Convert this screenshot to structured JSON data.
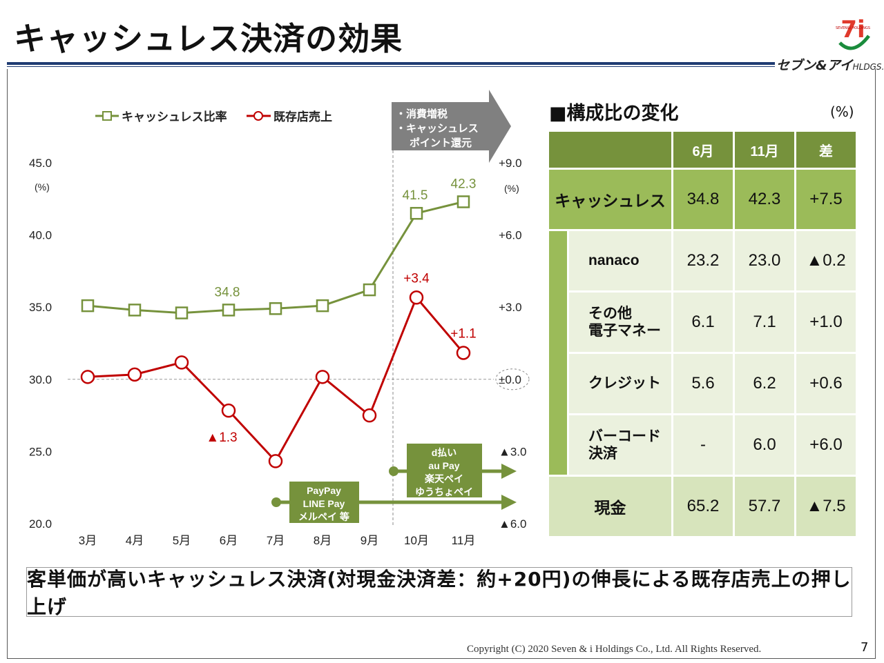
{
  "header": {
    "title": "キャッシュレス決済の効果",
    "brand": "セブン&アイ",
    "brand_suffix": "HLDGS.",
    "logo_text": "SEVEN&i HOLDINGS",
    "logo_glyph": "7i"
  },
  "chart_data": {
    "type": "line",
    "title": "",
    "categories": [
      "3月",
      "4月",
      "5月",
      "6月",
      "7月",
      "8月",
      "9月",
      "10月",
      "11月"
    ],
    "left_axis": {
      "unit": "(%)",
      "ylim": [
        20.0,
        45.0
      ],
      "ticks": [
        "45.0",
        "40.0",
        "35.0",
        "30.0",
        "25.0",
        "20.0"
      ]
    },
    "right_axis": {
      "unit": "(%)",
      "ylim": [
        -6.0,
        9.0
      ],
      "ticks": [
        "+9.0",
        "+6.0",
        "+3.0",
        "±0.0",
        "▲3.0",
        "▲6.0"
      ]
    },
    "series": [
      {
        "name": "キャッシュレス比率",
        "axis": "left",
        "color": "#76923c",
        "values": [
          35.1,
          34.8,
          34.6,
          34.8,
          34.9,
          35.1,
          36.2,
          41.5,
          42.3
        ],
        "labels": {
          "3": "34.8",
          "7": "41.5",
          "8": "42.3"
        }
      },
      {
        "name": "既存店売上",
        "axis": "right",
        "color": "#c00000",
        "values": [
          0.1,
          0.2,
          0.7,
          -1.3,
          -3.4,
          0.1,
          -1.5,
          3.4,
          1.1
        ],
        "labels": {
          "3": "▲1.3",
          "7": "+3.4",
          "8": "+1.1"
        }
      }
    ],
    "annotations": {
      "tax_arrow": [
        "・消費増税",
        "・キャッシュレス",
        "ポイント還元"
      ],
      "group1": [
        "PayPay",
        "LINE Pay",
        "メルペイ 等"
      ],
      "group2": [
        "d払い",
        "au Pay",
        "楽天ペイ",
        "ゆうちょペイ"
      ]
    }
  },
  "table": {
    "title": "■構成比の変化",
    "unit": "(%)",
    "headers": [
      "6月",
      "11月",
      "差"
    ],
    "cashless": {
      "label": "キャッシュレス",
      "jun": "34.8",
      "nov": "42.3",
      "diff": "+7.5"
    },
    "sub_rows": [
      {
        "label": "nanaco",
        "label2": "",
        "jun": "23.2",
        "nov": "23.0",
        "diff": "▲0.2"
      },
      {
        "label": "その他",
        "label2": "電子マネー",
        "jun": "6.1",
        "nov": "7.1",
        "diff": "+1.0"
      },
      {
        "label": "クレジット",
        "label2": "",
        "jun": "5.6",
        "nov": "6.2",
        "diff": "+0.6"
      },
      {
        "label": "バーコード",
        "label2": "決済",
        "jun": "-",
        "nov": "6.0",
        "diff": "+6.0"
      }
    ],
    "cash": {
      "label": "現金",
      "jun": "65.2",
      "nov": "57.7",
      "diff": "▲7.5"
    }
  },
  "conclusion": "客単価が高いキャッシュレス決済(対現金決済差：約+20円)の伸長による既存店売上の押し上げ",
  "footer": {
    "copyright": "Copyright (C) 2020  Seven & i Holdings Co., Ltd.  All Rights Reserved.",
    "page": "7"
  }
}
